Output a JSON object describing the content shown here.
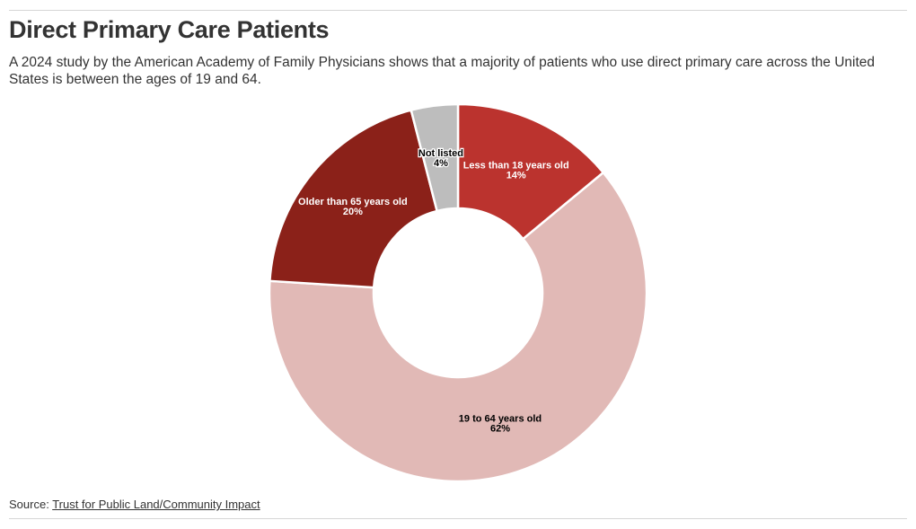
{
  "header": {
    "title": "Direct Primary Care Patients",
    "subtitle": "A 2024 study by the American Academy of Family Physicians shows that a majority of patients who use direct primary care across the United States is between the ages of 19 and 64."
  },
  "chart_data": {
    "type": "pie",
    "donut": true,
    "legend": "none",
    "slices": [
      {
        "label": "Less than 18 years old",
        "value": 14,
        "value_label": "14%",
        "color": "#bb332e",
        "label_color": "#ffffff"
      },
      {
        "label": "19 to 64 years old",
        "value": 62,
        "value_label": "62%",
        "color": "#e1b9b6",
        "label_color": "#000000"
      },
      {
        "label": "Older than 65 years old",
        "value": 20,
        "value_label": "20%",
        "color": "#8b2119",
        "label_color": "#ffffff"
      },
      {
        "label": "Not listed",
        "value": 4,
        "value_label": "4%",
        "color": "#bdbdbd",
        "label_color": "#000000"
      }
    ]
  },
  "footer": {
    "source_prefix": "Source: ",
    "source_link": "Trust for Public Land/Community Impact"
  }
}
